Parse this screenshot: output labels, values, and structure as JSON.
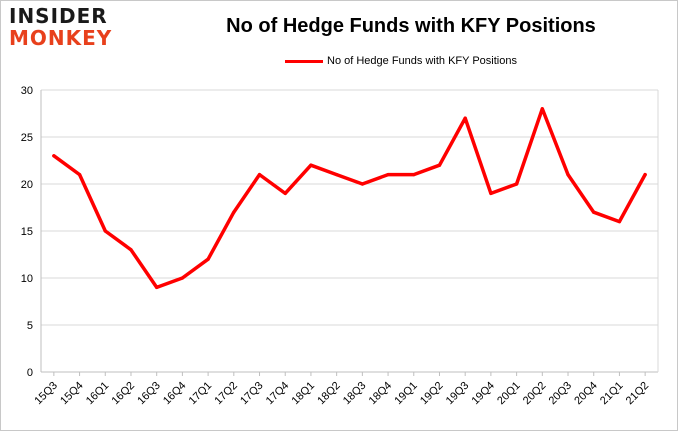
{
  "logo": {
    "line1": "INSIDER",
    "line2": "MONKEY"
  },
  "chart_data": {
    "type": "line",
    "title": "No of Hedge Funds with KFY Positions",
    "xlabel": "",
    "ylabel": "",
    "categories": [
      "15Q3",
      "15Q4",
      "16Q1",
      "16Q2",
      "16Q3",
      "16Q4",
      "17Q1",
      "17Q2",
      "17Q3",
      "17Q4",
      "18Q1",
      "18Q2",
      "18Q3",
      "18Q4",
      "19Q1",
      "19Q2",
      "19Q3",
      "19Q4",
      "20Q1",
      "20Q2",
      "20Q3",
      "20Q4",
      "21Q1",
      "21Q2"
    ],
    "series": [
      {
        "name": "No of Hedge Funds with KFY Positions",
        "color": "#ff0000",
        "values": [
          23,
          21,
          15,
          13,
          9,
          10,
          12,
          17,
          21,
          19,
          22,
          21,
          20,
          21,
          21,
          22,
          27,
          19,
          20,
          28,
          21,
          17,
          16,
          21
        ]
      }
    ],
    "ylim": [
      0,
      30
    ],
    "yticks": [
      0,
      5,
      10,
      15,
      20,
      25,
      30
    ],
    "grid": true,
    "legend_position": "top"
  }
}
